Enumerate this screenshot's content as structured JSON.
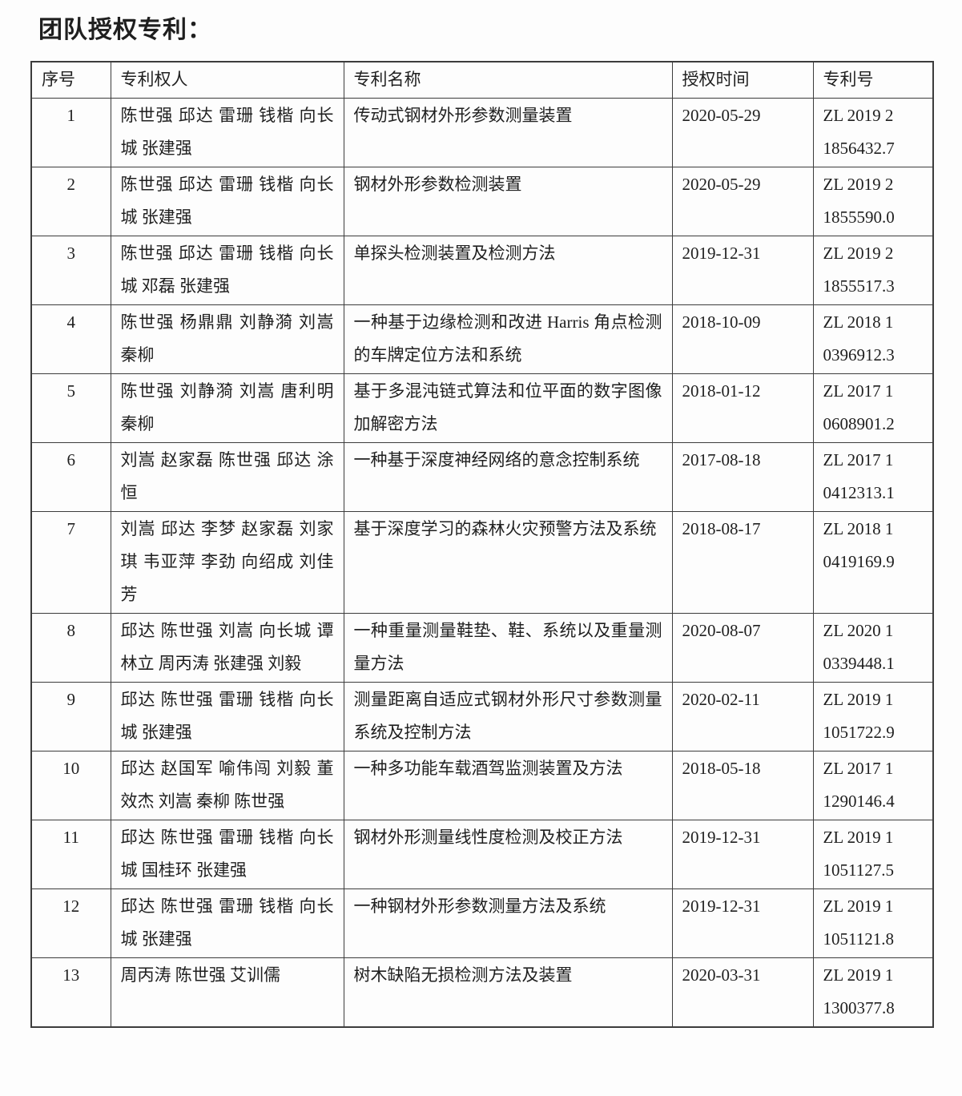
{
  "page": {
    "title": "团队授权专利："
  },
  "table": {
    "headers": [
      "序号",
      "专利权人",
      "专利名称",
      "授权时间",
      "专利号"
    ],
    "rows": [
      {
        "no": "1",
        "holders": "陈世强 邱达 雷珊 钱楷 向长城 张建强",
        "name": "传动式钢材外形参数测量装置",
        "date": "2020-05-29",
        "patent_no": "ZL 2019 2 1856432.7"
      },
      {
        "no": "2",
        "holders": "陈世强 邱达 雷珊 钱楷 向长城 张建强",
        "name": "钢材外形参数检测装置",
        "date": "2020-05-29",
        "patent_no": "ZL 2019 2 1855590.0"
      },
      {
        "no": "3",
        "holders": "陈世强 邱达 雷珊 钱楷 向长城 邓磊 张建强",
        "name": "单探头检测装置及检测方法",
        "date": "2019-12-31",
        "patent_no": "ZL 2019 2 1855517.3"
      },
      {
        "no": "4",
        "holders": "陈世强 杨鼎鼎 刘静漪 刘嵩 秦柳",
        "name": "一种基于边缘检测和改进 Harris 角点检测的车牌定位方法和系统",
        "date": "2018-10-09",
        "patent_no": "ZL 2018 1 0396912.3"
      },
      {
        "no": "5",
        "holders": "陈世强 刘静漪 刘嵩 唐利明 秦柳",
        "name": "基于多混沌链式算法和位平面的数字图像加解密方法",
        "date": "2018-01-12",
        "patent_no": "ZL 2017 1 0608901.2"
      },
      {
        "no": "6",
        "holders": "刘嵩 赵家磊 陈世强 邱达 涂恒",
        "name": "一种基于深度神经网络的意念控制系统",
        "date": "2017-08-18",
        "patent_no": "ZL 2017 1 0412313.1"
      },
      {
        "no": "7",
        "holders": "刘嵩 邱达 李梦 赵家磊 刘家琪 韦亚萍 李劲 向绍成 刘佳芳",
        "name": "基于深度学习的森林火灾预警方法及系统",
        "date": "2018-08-17",
        "patent_no": "ZL 2018 1 0419169.9"
      },
      {
        "no": "8",
        "holders": "邱达 陈世强 刘嵩 向长城 谭林立 周丙涛 张建强 刘毅",
        "name": "一种重量测量鞋垫、鞋、系统以及重量测量方法",
        "date": "2020-08-07",
        "patent_no": "ZL 2020 1 0339448.1"
      },
      {
        "no": "9",
        "holders": "邱达 陈世强 雷珊 钱楷 向长城 张建强",
        "name": "测量距离自适应式钢材外形尺寸参数测量系统及控制方法",
        "date": "2020-02-11",
        "patent_no": "ZL 2019 1 1051722.9"
      },
      {
        "no": "10",
        "holders": "邱达 赵国军 喻伟闯 刘毅 董效杰 刘嵩 秦柳 陈世强",
        "name": "一种多功能车载酒驾监测装置及方法",
        "date": "2018-05-18",
        "patent_no": "ZL 2017 1 1290146.4"
      },
      {
        "no": "11",
        "holders": "邱达 陈世强 雷珊 钱楷 向长城 国桂环 张建强",
        "name": "钢材外形测量线性度检测及校正方法",
        "date": "2019-12-31",
        "patent_no": "ZL 2019 1 1051127.5"
      },
      {
        "no": "12",
        "holders": "邱达 陈世强 雷珊 钱楷 向长城 张建强",
        "name": "一种钢材外形参数测量方法及系统",
        "date": "2019-12-31",
        "patent_no": "ZL 2019 1 1051121.8"
      },
      {
        "no": "13",
        "holders": "周丙涛 陈世强 艾训儒",
        "name": "树木缺陷无损检测方法及装置",
        "date": "2020-03-31",
        "patent_no": "ZL 2019 1 1300377.8"
      }
    ]
  }
}
